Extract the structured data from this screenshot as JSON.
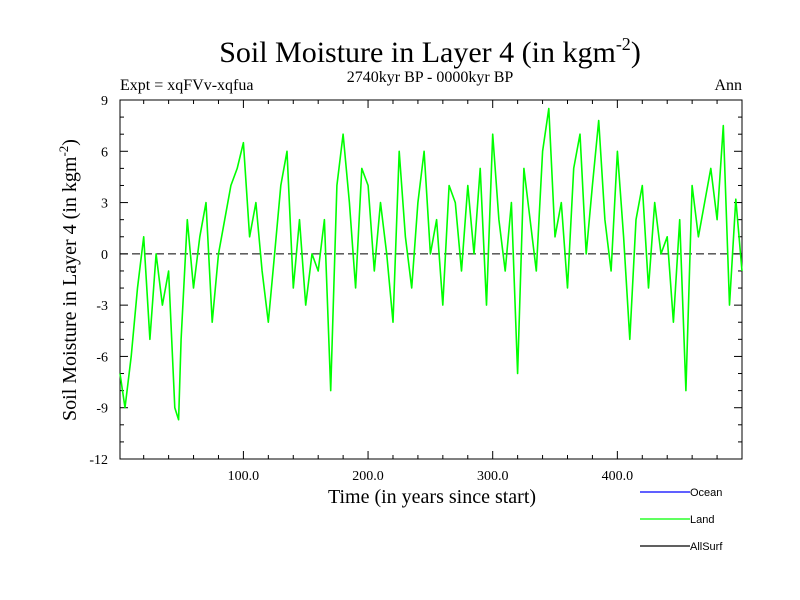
{
  "chart_data": {
    "type": "line",
    "title": "Soil Moisture in Layer 4 (in kgm",
    "title_sup": "-2",
    "title_end": ")",
    "subtitle_left": "Expt = xqFVv-xqfua",
    "subtitle_center": "2740kyr BP - 0000kyr BP",
    "subtitle_right": "Ann",
    "xlabel": "Time (in years since start)",
    "ylabel": "Soil Moisture in Layer 4 (in kgm",
    "ylabel_sup": "-2",
    "ylabel_end": ")",
    "xlim": [
      1,
      500
    ],
    "ylim": [
      -12,
      9
    ],
    "xticks": [
      100,
      200,
      300,
      400
    ],
    "xtick_labels": [
      "100.0",
      "200.0",
      "300.0",
      "400.0"
    ],
    "yticks": [
      -12,
      -9,
      -6,
      -3,
      0,
      3,
      6,
      9
    ],
    "ytick_labels": [
      "-12",
      "-9",
      "-6",
      "-3",
      "0",
      "3",
      "6",
      "9"
    ],
    "zero_line": "dashed",
    "series": [
      {
        "name": "Ocean",
        "color": "#0000ff",
        "values": []
      },
      {
        "name": "Land",
        "color": "#00ff00",
        "x": [
          1,
          5,
          10,
          15,
          20,
          25,
          30,
          35,
          40,
          45,
          48,
          50,
          55,
          60,
          65,
          70,
          75,
          80,
          85,
          90,
          95,
          100,
          105,
          110,
          115,
          120,
          125,
          130,
          135,
          140,
          145,
          150,
          155,
          160,
          165,
          170,
          175,
          180,
          185,
          190,
          195,
          200,
          205,
          210,
          215,
          220,
          225,
          230,
          235,
          240,
          245,
          250,
          255,
          260,
          265,
          270,
          275,
          280,
          285,
          290,
          295,
          300,
          305,
          310,
          315,
          320,
          325,
          330,
          335,
          340,
          345,
          350,
          355,
          360,
          365,
          370,
          375,
          380,
          385,
          390,
          395,
          400,
          405,
          410,
          415,
          420,
          425,
          430,
          435,
          440,
          445,
          450,
          455,
          460,
          465,
          470,
          475,
          480,
          485,
          490,
          495,
          500
        ],
        "values": [
          -7,
          -9,
          -6,
          -2,
          1,
          -5,
          0,
          -3,
          -1,
          -9,
          -9.7,
          -5,
          2,
          -2,
          1,
          3,
          -4,
          0,
          2,
          4,
          5,
          6.5,
          1,
          3,
          -1,
          -4,
          0,
          4,
          6,
          -2,
          2,
          -3,
          0,
          -1,
          2,
          -8,
          4,
          7,
          3,
          -2,
          5,
          4,
          -1,
          3,
          0,
          -4,
          6,
          1,
          -2,
          3,
          6,
          0,
          2,
          -3,
          4,
          3,
          -1,
          4,
          0,
          5,
          -3,
          7,
          2,
          -1,
          3,
          -7,
          5,
          2,
          -1,
          6,
          8.5,
          1,
          3,
          -2,
          5,
          7,
          0,
          4,
          7.8,
          2,
          -1,
          6,
          1,
          -5,
          2,
          4,
          -2,
          3,
          0,
          1,
          -4,
          2,
          -8,
          4,
          1,
          3,
          5,
          2,
          7.5,
          -3,
          3.2,
          -1
        ]
      },
      {
        "name": "AllSurf",
        "color": "#000000",
        "values": []
      }
    ]
  }
}
